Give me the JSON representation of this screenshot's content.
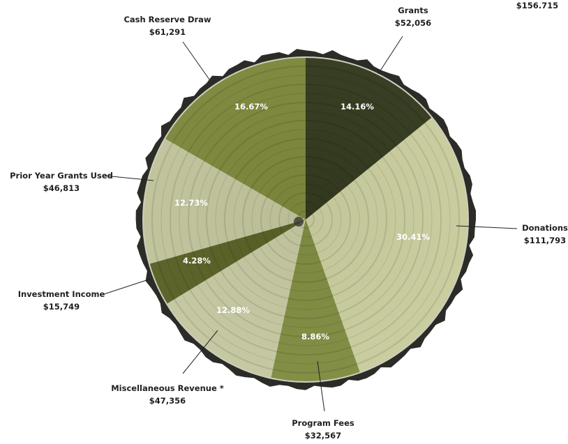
{
  "chart_data": {
    "type": "pie",
    "title": "",
    "corner_value": "$156.715",
    "slices": [
      {
        "label": "Grants",
        "amount": "$52,056",
        "value": 52056,
        "percent": "14.16%",
        "color": "#2c3418"
      },
      {
        "label": "Donations",
        "amount": "$111,793",
        "value": 111793,
        "percent": "30.41%",
        "color": "#c9cc9c"
      },
      {
        "label": "Program Fees",
        "amount": "$32,567",
        "value": 32567,
        "percent": "8.86%",
        "color": "#7d8a3c"
      },
      {
        "label": "Miscellaneous Revenue *",
        "amount": "$47,356",
        "value": 47356,
        "percent": "12.88%",
        "color": "#c5c7a0"
      },
      {
        "label": "Investment Income",
        "amount": "$15,749",
        "value": 15749,
        "percent": "4.28%",
        "color": "#545d20"
      },
      {
        "label": "Prior Year Grants Used",
        "amount": "$46,813",
        "value": 46813,
        "percent": "12.73%",
        "color": "#bfc39a"
      },
      {
        "label": "Cash Reserve Draw",
        "amount": "$61,291",
        "value": 61291,
        "percent": "16.67%",
        "color": "#7a8437"
      }
    ]
  }
}
